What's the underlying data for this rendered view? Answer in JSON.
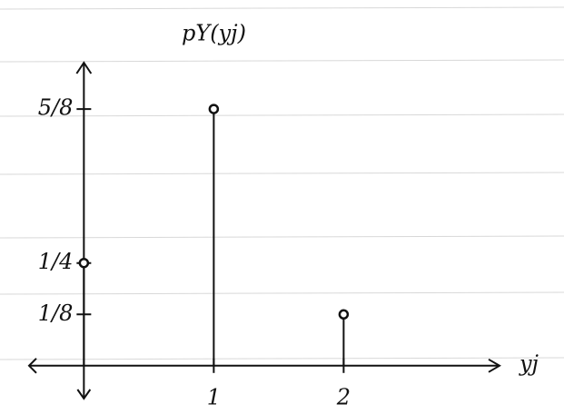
{
  "chart_data": {
    "type": "stem",
    "y_label": "pY(yj)",
    "x_label": "yj",
    "x": [
      0,
      1,
      2
    ],
    "values": [
      0.25,
      0.625,
      0.125
    ],
    "color": "#111111",
    "xlim": [
      -0.45,
      3.2
    ],
    "xticks": [
      1,
      2
    ],
    "ylim": [
      -0.08,
      0.76
    ],
    "yticks": [
      {
        "value": 0.125,
        "label": "1/8"
      },
      {
        "value": 0.25,
        "label": "1/4"
      },
      {
        "value": 0.625,
        "label": "5/8"
      }
    ]
  }
}
